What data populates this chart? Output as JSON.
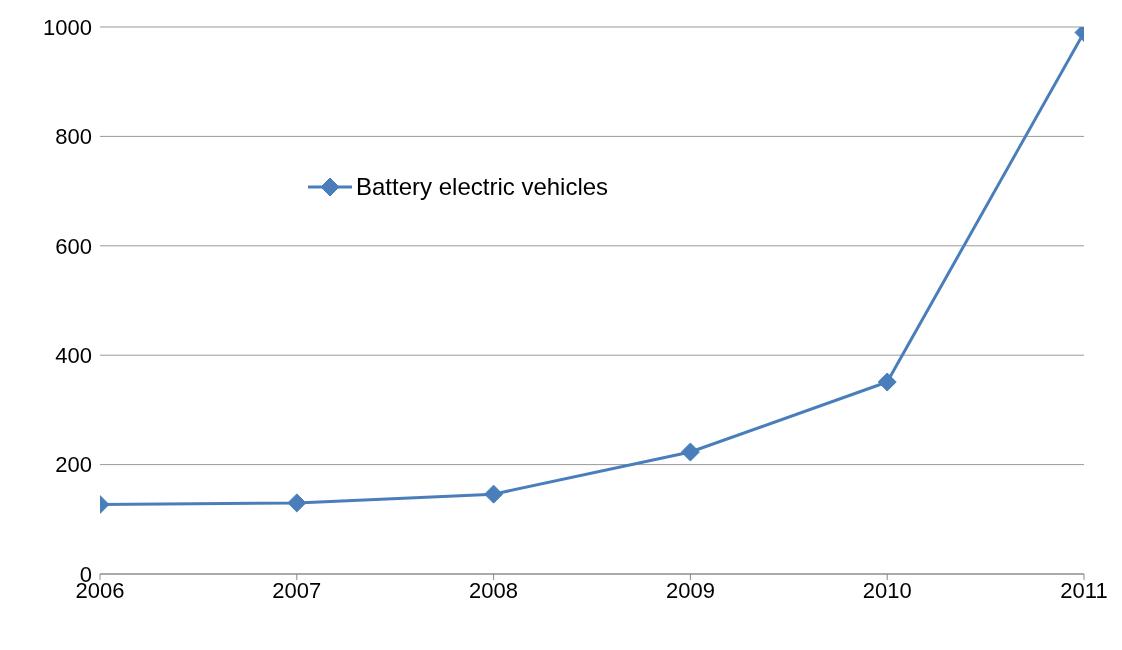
{
  "chart_data": {
    "type": "line",
    "x": [
      2006,
      2007,
      2008,
      2009,
      2010,
      2011
    ],
    "series": [
      {
        "name": "Battery electric vehicles",
        "color": "#4a7ebb",
        "values": [
          127,
          130,
          146,
          223,
          351,
          990
        ]
      }
    ],
    "xlim": [
      2006,
      2011
    ],
    "xticks": [
      2006,
      2007,
      2008,
      2009,
      2010,
      2011
    ],
    "ylim": [
      0,
      1000
    ],
    "yticks": [
      0,
      200,
      400,
      600,
      800,
      1000
    ],
    "grid": "y",
    "legend": "top left",
    "marker": "diamond",
    "line_style": "solid"
  }
}
